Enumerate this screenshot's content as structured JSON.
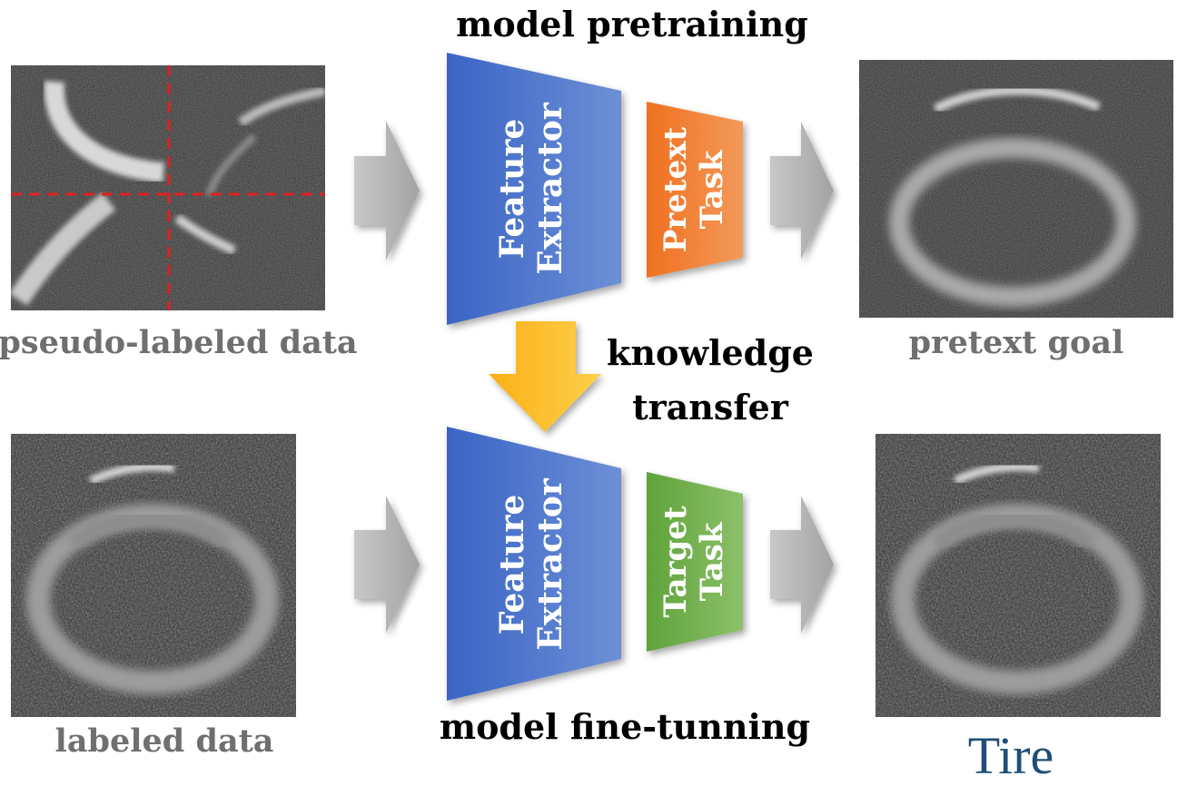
{
  "titles": {
    "pretraining": "model pretraining",
    "finetuning": "model fine-tunning",
    "transfer_line1": "knowledge",
    "transfer_line2": "transfer"
  },
  "captions": {
    "pseudo_labeled": "pseudo-labeled data",
    "pretext_goal": "pretext goal",
    "labeled": "labeled data",
    "result": "Tire"
  },
  "blocks": {
    "top_extractor_line1": "Feature",
    "top_extractor_line2": "Extractor",
    "pretext_line1": "Pretext",
    "pretext_line2": "Task",
    "bottom_extractor_line1": "Feature",
    "bottom_extractor_line2": "Extractor",
    "target_line1": "Target",
    "target_line2": "Task"
  },
  "colors": {
    "extractor": "#4a72c8",
    "pretext": "#f07d2c",
    "target": "#6aaa45",
    "transfer_arrow": "#fbbc1e",
    "flow_arrow": "#b5b5b5",
    "result_text": "#1f4e79"
  }
}
